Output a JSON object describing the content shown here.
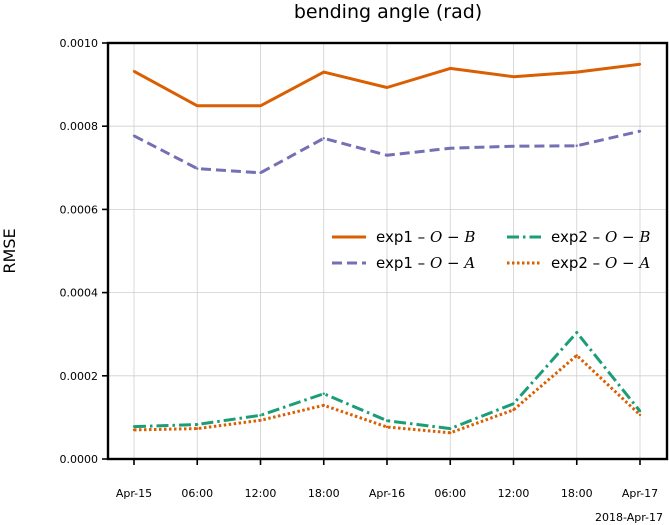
{
  "chart_data": {
    "type": "line",
    "title": "bending angle (rad)",
    "xlabel": "",
    "ylabel": "RMSE",
    "corner_label": "2018-Apr-17",
    "categories": [
      "Apr-15",
      "06:00",
      "12:00",
      "18:00",
      "Apr-16",
      "06:00",
      "12:00",
      "18:00",
      "Apr-17"
    ],
    "ylim": [
      0,
      0.001
    ],
    "yticks": [
      "0.0000",
      "0.0002",
      "0.0004",
      "0.0006",
      "0.0008",
      "0.0010"
    ],
    "ytick_values": [
      0,
      0.0002,
      0.0004,
      0.0006,
      0.0008,
      0.001
    ],
    "grid": true,
    "legend_position": "center-right",
    "series": [
      {
        "name": "exp1 – O – B",
        "prefix": "exp1 – ",
        "math": "O − B",
        "color": "#d95f02",
        "style": "solid",
        "values": [
          0.000932,
          0.000849,
          0.000849,
          0.00093,
          0.000893,
          0.000939,
          0.000919,
          0.00093,
          0.000949
        ]
      },
      {
        "name": "exp1 – O – A",
        "prefix": "exp1 – ",
        "math": "O − A",
        "color": "#7570b3",
        "style": "dashed",
        "values": [
          0.000777,
          0.000698,
          0.000688,
          0.000771,
          0.00073,
          0.000747,
          0.000752,
          0.000753,
          0.000788
        ]
      },
      {
        "name": "exp2 – O – B",
        "prefix": "exp2 – ",
        "math": "O − B",
        "color": "#1b9e77",
        "style": "dashdot",
        "values": [
          7.8e-05,
          8.3e-05,
          0.000105,
          0.000157,
          9.2e-05,
          7.3e-05,
          0.000133,
          0.000304,
          0.000115
        ]
      },
      {
        "name": "exp2 – O – A",
        "prefix": "exp2 – ",
        "math": "O − A",
        "color": "#d95f02",
        "style": "dotted",
        "values": [
          7e-05,
          7.3e-05,
          9.3e-05,
          0.000129,
          7.7e-05,
          6.3e-05,
          0.000118,
          0.000249,
          0.000106
        ]
      }
    ]
  }
}
